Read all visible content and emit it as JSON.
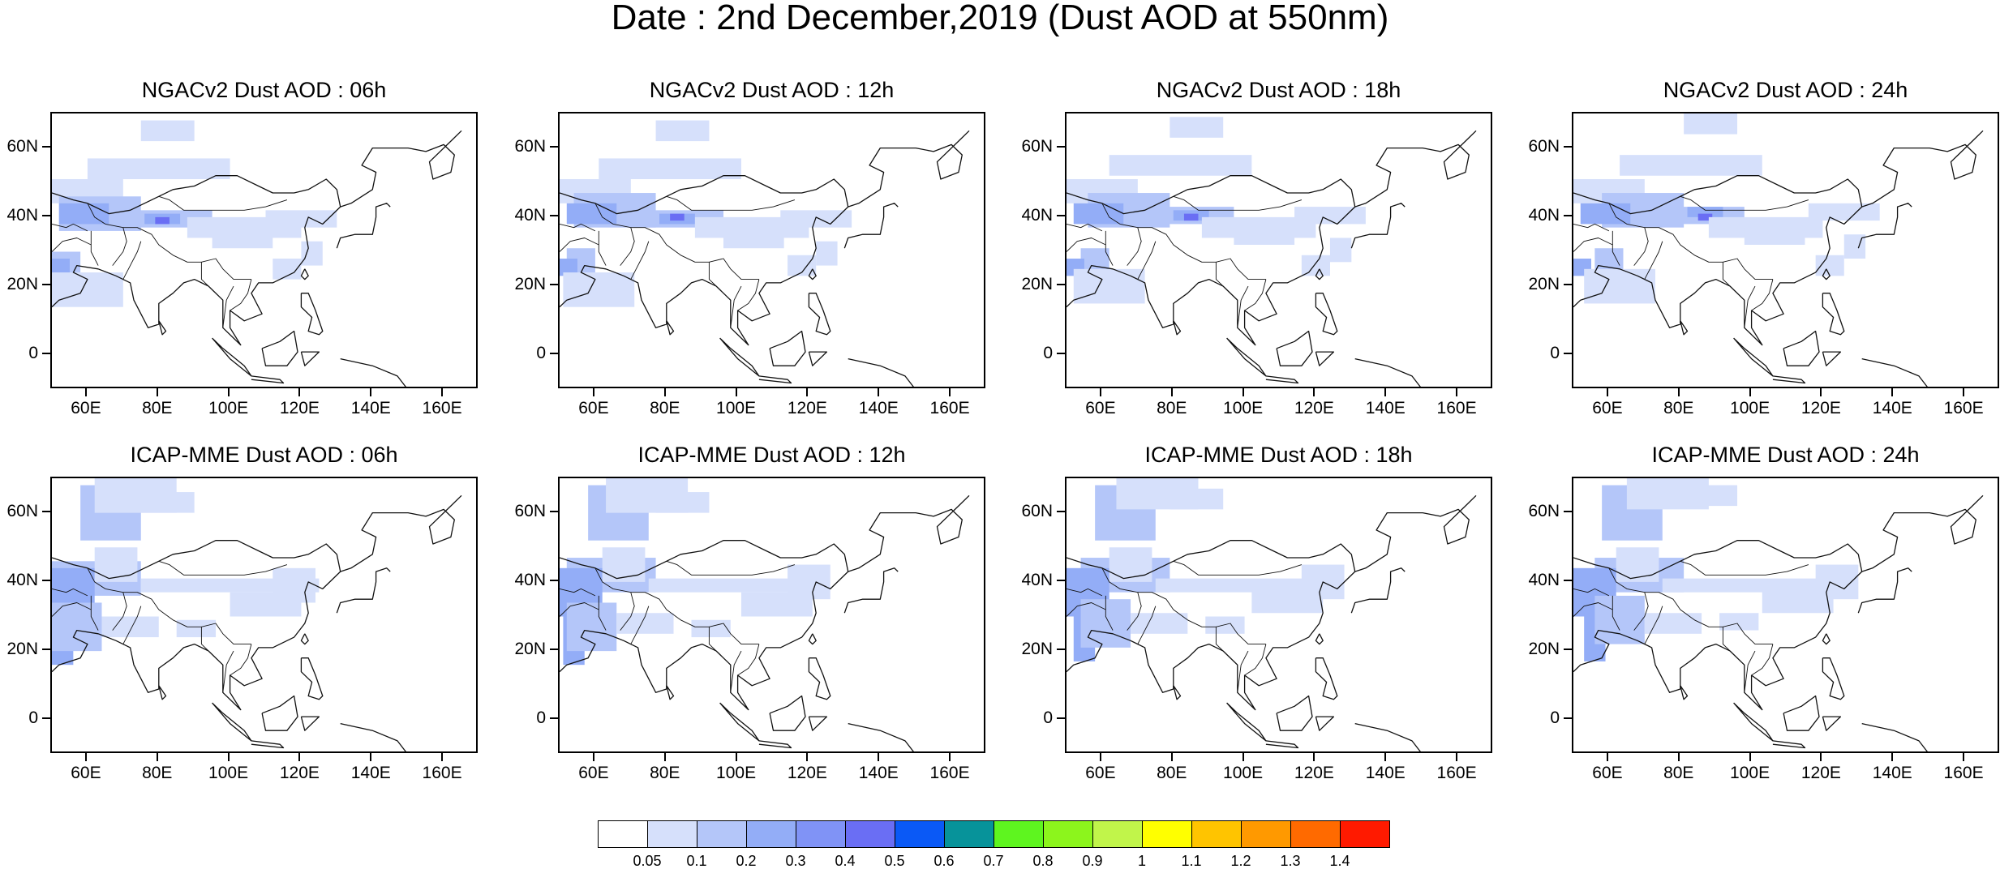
{
  "title": "Date : 2nd December,2019 (Dust AOD at 550nm)",
  "y_tick_labels": [
    "60N",
    "40N",
    "20N",
    "0"
  ],
  "x_tick_labels": [
    "60E",
    "80E",
    "100E",
    "120E",
    "140E",
    "160E"
  ],
  "panels": [
    {
      "title": "NGACv2 Dust AOD : 06h",
      "model": "NGACv2",
      "hour": "06h"
    },
    {
      "title": "NGACv2 Dust AOD : 12h",
      "model": "NGACv2",
      "hour": "12h"
    },
    {
      "title": "NGACv2 Dust AOD : 18h",
      "model": "NGACv2",
      "hour": "18h"
    },
    {
      "title": "NGACv2 Dust AOD : 24h",
      "model": "NGACv2",
      "hour": "24h"
    },
    {
      "title": "ICAP-MME Dust AOD : 06h",
      "model": "ICAP-MME",
      "hour": "06h"
    },
    {
      "title": "ICAP-MME Dust AOD : 12h",
      "model": "ICAP-MME",
      "hour": "12h"
    },
    {
      "title": "ICAP-MME Dust AOD : 18h",
      "model": "ICAP-MME",
      "hour": "18h"
    },
    {
      "title": "ICAP-MME Dust AOD : 24h",
      "model": "ICAP-MME",
      "hour": "24h"
    }
  ],
  "map_extent": {
    "lon": [
      50,
      170
    ],
    "lat": [
      -10,
      70
    ]
  },
  "colorbar": {
    "labels": [
      "0.05",
      "0.1",
      "0.2",
      "0.3",
      "0.4",
      "0.5",
      "0.6",
      "0.7",
      "0.8",
      "0.9",
      "1",
      "1.1",
      "1.2",
      "1.3",
      "1.4"
    ],
    "colors": [
      "#ffffff",
      "#d6e0fb",
      "#b4c6f9",
      "#93adf7",
      "#8093f6",
      "#6a6ef4",
      "#0a59f6",
      "#07939a",
      "#5ef51f",
      "#8cf51c",
      "#c1f54a",
      "#ffff00",
      "#ffc400",
      "#ff9900",
      "#ff6a00",
      "#ff1a00"
    ]
  },
  "palette": {
    "light": "#d6e0fb",
    "mid": "#b4c6f9",
    "strong": "#93adf7",
    "peak": "#6a6ef4"
  }
}
